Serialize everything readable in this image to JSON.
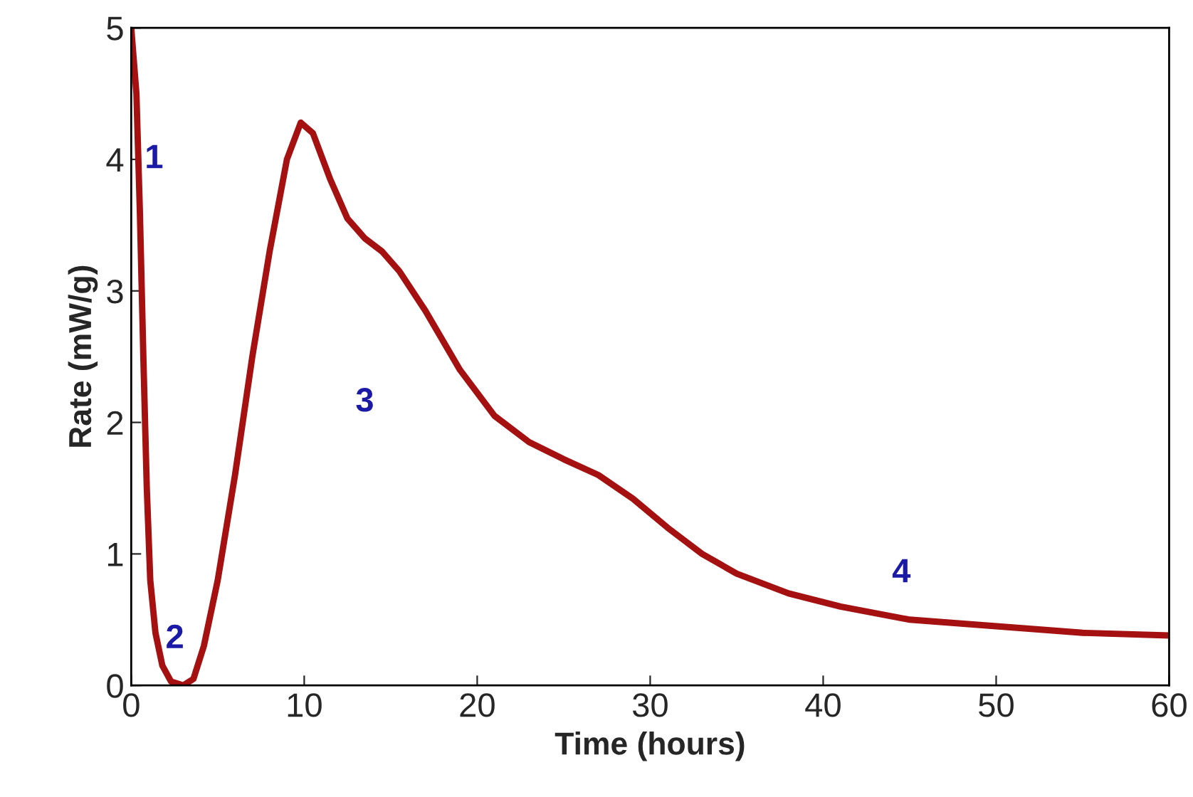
{
  "chart_data": {
    "type": "line",
    "xlabel": "Time (hours)",
    "ylabel": "Rate (mW/g)",
    "xlim": [
      0,
      60
    ],
    "xticks": [
      0,
      10,
      20,
      30,
      40,
      50,
      60
    ],
    "ylim": [
      0,
      5
    ],
    "yticks": [
      0,
      1,
      2,
      3,
      4,
      5
    ],
    "grid": false,
    "marker": "none",
    "line_style": "solid",
    "series": [
      {
        "color": "#a51010",
        "x": [
          0,
          0.3,
          0.5,
          0.7,
          0.9,
          1.1,
          1.4,
          1.8,
          2.3,
          3.0,
          3.6,
          4.2,
          5.0,
          6.0,
          7.0,
          8.0,
          9.0,
          9.8,
          10.5,
          11.5,
          12.5,
          13.5,
          14.5,
          15.5,
          17,
          19,
          21,
          23,
          25,
          27,
          29,
          31,
          33,
          35,
          38,
          41,
          45,
          50,
          55,
          60
        ],
        "values": [
          5.0,
          4.5,
          3.6,
          2.5,
          1.5,
          0.8,
          0.4,
          0.15,
          0.03,
          0.0,
          0.05,
          0.3,
          0.8,
          1.6,
          2.5,
          3.3,
          4.0,
          4.28,
          4.2,
          3.85,
          3.55,
          3.4,
          3.3,
          3.15,
          2.85,
          2.4,
          2.05,
          1.85,
          1.72,
          1.6,
          1.42,
          1.2,
          1.0,
          0.85,
          0.7,
          0.6,
          0.5,
          0.45,
          0.4,
          0.38
        ]
      }
    ],
    "annotations": [
      "1",
      "2",
      "3",
      "4"
    ]
  }
}
